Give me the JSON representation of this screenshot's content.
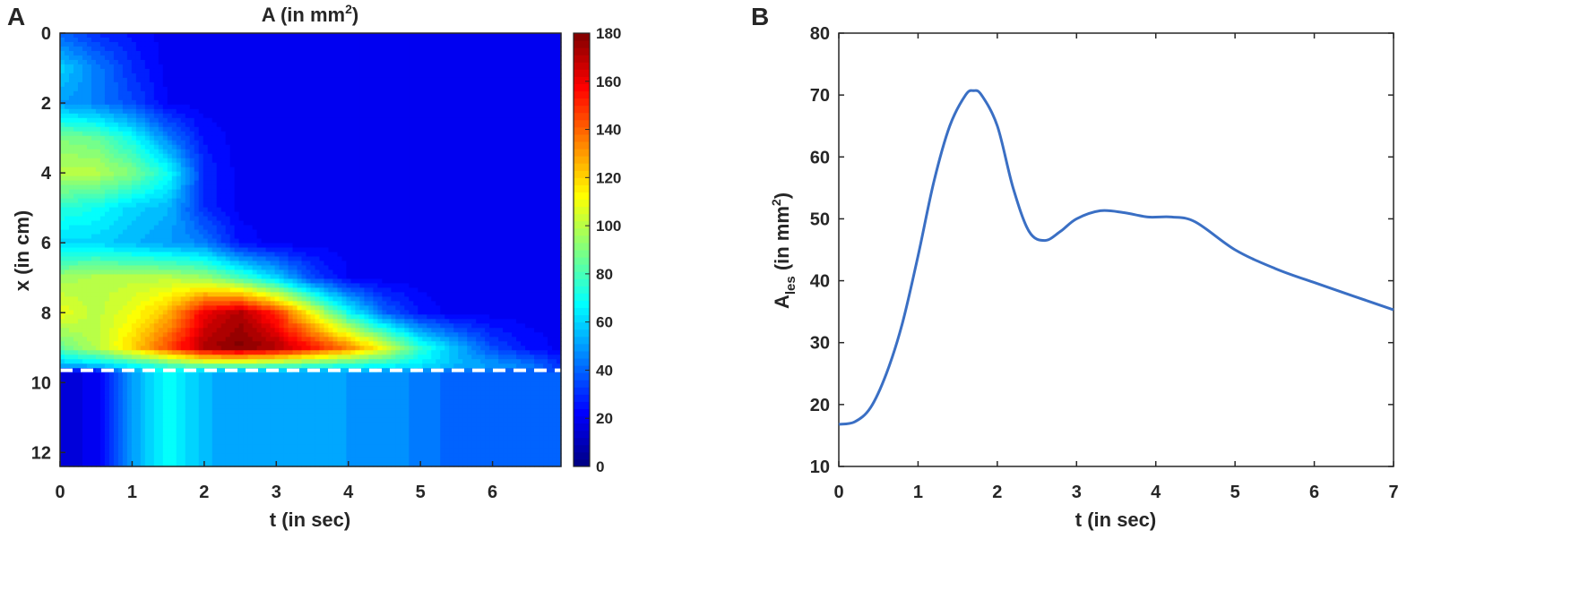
{
  "chart_data": [
    {
      "panel_label": "A",
      "type": "heatmap",
      "title": "A (in mm",
      "title_sup": "2",
      "title_end": ")",
      "xlabel": "t (in sec)",
      "ylabel": "x (in cm)",
      "xlim": [
        0,
        6.95
      ],
      "ylim": [
        0,
        12.4
      ],
      "y_reversed": true,
      "xticks": [
        "0",
        "1",
        "2",
        "3",
        "4",
        "5",
        "6"
      ],
      "yticks": [
        "0",
        "2",
        "4",
        "6",
        "8",
        "10",
        "12"
      ],
      "colorbar": {
        "range": [
          0,
          180
        ],
        "ticks": [
          "0",
          "20",
          "40",
          "60",
          "80",
          "100",
          "120",
          "140",
          "160",
          "180"
        ],
        "colormap": "jet"
      },
      "dashed_line_x": 9.65,
      "grid_t": [
        0,
        0.5,
        1,
        1.5,
        2,
        2.5,
        3,
        3.5,
        4,
        4.5,
        5,
        5.5,
        6,
        6.5,
        7
      ],
      "grid_x": [
        0,
        1,
        2,
        3,
        4,
        5,
        6,
        7,
        8,
        9,
        9.5,
        9.7,
        10,
        12.5
      ],
      "values": [
        [
          40,
          30,
          25,
          20,
          20,
          20,
          20,
          20,
          20,
          20,
          20,
          20,
          20,
          20,
          20
        ],
        [
          60,
          45,
          30,
          20,
          20,
          20,
          20,
          20,
          20,
          20,
          20,
          20,
          20,
          20,
          20
        ],
        [
          50,
          45,
          35,
          22,
          20,
          20,
          20,
          20,
          20,
          20,
          20,
          20,
          20,
          20,
          20
        ],
        [
          90,
          85,
          70,
          45,
          25,
          20,
          20,
          20,
          20,
          20,
          20,
          20,
          20,
          20,
          20
        ],
        [
          100,
          100,
          90,
          70,
          30,
          20,
          20,
          20,
          20,
          20,
          20,
          20,
          20,
          20,
          20
        ],
        [
          75,
          70,
          60,
          55,
          30,
          20,
          20,
          20,
          20,
          20,
          20,
          20,
          20,
          20,
          20
        ],
        [
          60,
          60,
          55,
          50,
          45,
          25,
          20,
          20,
          20,
          20,
          20,
          20,
          20,
          20,
          20
        ],
        [
          95,
          100,
          100,
          100,
          95,
          80,
          60,
          35,
          22,
          20,
          20,
          20,
          20,
          20,
          20
        ],
        [
          110,
          100,
          110,
          125,
          160,
          172,
          150,
          110,
          70,
          40,
          25,
          20,
          20,
          20,
          20
        ],
        [
          85,
          100,
          120,
          145,
          172,
          180,
          172,
          155,
          135,
          110,
          75,
          55,
          35,
          25,
          20
        ],
        [
          55,
          60,
          70,
          80,
          90,
          90,
          85,
          80,
          75,
          70,
          65,
          55,
          50,
          45,
          28
        ],
        [
          15,
          20,
          50,
          70,
          55,
          50,
          50,
          50,
          50,
          48,
          45,
          40,
          40,
          38,
          38
        ],
        [
          15,
          20,
          50,
          70,
          55,
          50,
          52,
          50,
          50,
          48,
          45,
          40,
          40,
          38,
          38
        ],
        [
          15,
          20,
          50,
          70,
          55,
          50,
          50,
          50,
          50,
          48,
          45,
          40,
          40,
          38,
          38
        ]
      ]
    },
    {
      "panel_label": "B",
      "type": "line",
      "xlabel": "t (in sec)",
      "ylabel_main": "A",
      "ylabel_sub": "les",
      "ylabel_rest": " (in mm",
      "ylabel_sup": "2",
      "ylabel_end": ")",
      "xlim": [
        0,
        7
      ],
      "ylim": [
        10,
        80
      ],
      "xticks": [
        "0",
        "1",
        "2",
        "3",
        "4",
        "5",
        "6",
        "7"
      ],
      "yticks": [
        "10",
        "20",
        "30",
        "40",
        "50",
        "60",
        "70",
        "80"
      ],
      "series": [
        {
          "name": "A_les",
          "color": "#3a6fc4",
          "x": [
            0,
            0.2,
            0.4,
            0.6,
            0.8,
            1.0,
            1.2,
            1.4,
            1.6,
            1.7,
            1.8,
            2.0,
            2.2,
            2.4,
            2.6,
            2.8,
            3.0,
            3.3,
            3.6,
            3.9,
            4.2,
            4.5,
            5.0,
            5.5,
            6.0,
            6.5,
            7.0
          ],
          "y": [
            16.8,
            17.2,
            19.5,
            25,
            33,
            44,
            56,
            65,
            70,
            70.7,
            70,
            65,
            55,
            48,
            46.5,
            48,
            50,
            51.3,
            51,
            50.3,
            50.3,
            49.5,
            45,
            42,
            39.7,
            37.5,
            35.3
          ]
        }
      ]
    }
  ]
}
